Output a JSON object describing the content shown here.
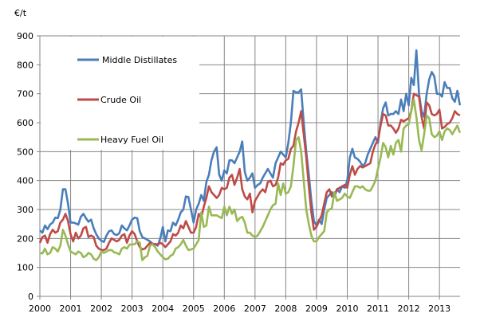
{
  "chart_data": {
    "type": "line",
    "title": "",
    "xlabel": "",
    "ylabel": "€/t",
    "ylim": [
      0,
      900
    ],
    "yticks": [
      0,
      100,
      200,
      300,
      400,
      500,
      600,
      700,
      800,
      900
    ],
    "xticks": [
      "2000",
      "2001",
      "2002",
      "2003",
      "2004",
      "2005",
      "2006",
      "2007",
      "2008",
      "2009",
      "2010",
      "2011",
      "2012",
      "2013"
    ],
    "x_start": "2000-01",
    "x_frequency": "monthly",
    "grid": true,
    "legend_position": "top-left",
    "series": [
      {
        "name": "Middle Distillates",
        "color": "#4a7ebb",
        "values": [
          228,
          220,
          245,
          232,
          248,
          255,
          272,
          270,
          300,
          370,
          370,
          320,
          255,
          255,
          252,
          248,
          275,
          285,
          270,
          258,
          265,
          235,
          215,
          200,
          192,
          188,
          210,
          225,
          228,
          215,
          212,
          218,
          245,
          235,
          228,
          245,
          265,
          272,
          270,
          225,
          205,
          200,
          195,
          190,
          182,
          180,
          175,
          200,
          240,
          190,
          228,
          225,
          255,
          245,
          265,
          290,
          300,
          345,
          343,
          300,
          255,
          300,
          320,
          350,
          330,
          395,
          420,
          470,
          500,
          515,
          420,
          400,
          435,
          425,
          470,
          470,
          460,
          480,
          500,
          535,
          430,
          400,
          410,
          425,
          375,
          385,
          390,
          410,
          425,
          440,
          425,
          410,
          460,
          480,
          500,
          490,
          480,
          530,
          600,
          710,
          705,
          705,
          715,
          600,
          500,
          420,
          330,
          260,
          245,
          265,
          250,
          300,
          340,
          350,
          360,
          345,
          370,
          360,
          380,
          375,
          400,
          480,
          510,
          480,
          475,
          465,
          450,
          460,
          490,
          510,
          530,
          550,
          530,
          600,
          650,
          670,
          625,
          630,
          630,
          640,
          630,
          680,
          640,
          700,
          660,
          755,
          730,
          850,
          700,
          640,
          620,
          700,
          750,
          775,
          760,
          700,
          700,
          690,
          740,
          720,
          720,
          685,
          672,
          710,
          660
        ]
      },
      {
        "name": "Crude Oil",
        "color": "#be4b48",
        "values": [
          185,
          205,
          210,
          185,
          215,
          230,
          220,
          225,
          255,
          265,
          285,
          260,
          215,
          190,
          220,
          200,
          210,
          235,
          240,
          205,
          210,
          205,
          175,
          165,
          160,
          160,
          165,
          185,
          200,
          195,
          190,
          195,
          210,
          215,
          185,
          210,
          225,
          215,
          190,
          170,
          162,
          165,
          175,
          185,
          180,
          180,
          180,
          185,
          180,
          170,
          180,
          190,
          215,
          210,
          220,
          245,
          235,
          260,
          240,
          220,
          220,
          240,
          285,
          270,
          310,
          340,
          380,
          360,
          350,
          340,
          350,
          375,
          370,
          375,
          410,
          420,
          385,
          410,
          440,
          370,
          345,
          335,
          355,
          290,
          330,
          345,
          360,
          370,
          360,
          395,
          400,
          380,
          385,
          410,
          460,
          455,
          470,
          475,
          510,
          520,
          570,
          600,
          640,
          560,
          480,
          380,
          290,
          230,
          240,
          260,
          280,
          320,
          360,
          370,
          345,
          350,
          370,
          375,
          380,
          385,
          375,
          420,
          450,
          420,
          440,
          450,
          445,
          450,
          455,
          460,
          500,
          525,
          540,
          590,
          630,
          625,
          590,
          590,
          580,
          565,
          580,
          610,
          605,
          610,
          615,
          640,
          700,
          695,
          690,
          620,
          580,
          670,
          660,
          630,
          625,
          630,
          645,
          580,
          585,
          595,
          600,
          615,
          640,
          630,
          625
        ]
      },
      {
        "name": "Heavy Fuel Oil",
        "color": "#98b954",
        "values": [
          150,
          148,
          165,
          145,
          150,
          170,
          165,
          155,
          175,
          230,
          210,
          180,
          155,
          150,
          145,
          155,
          150,
          135,
          140,
          150,
          145,
          130,
          125,
          135,
          155,
          150,
          155,
          160,
          160,
          152,
          150,
          145,
          165,
          170,
          165,
          178,
          180,
          180,
          190,
          185,
          125,
          135,
          140,
          175,
          180,
          170,
          155,
          145,
          135,
          128,
          130,
          140,
          145,
          165,
          170,
          180,
          195,
          175,
          160,
          162,
          165,
          180,
          195,
          290,
          240,
          245,
          310,
          280,
          280,
          280,
          275,
          270,
          310,
          280,
          310,
          285,
          300,
          260,
          270,
          275,
          255,
          220,
          220,
          210,
          205,
          210,
          225,
          240,
          260,
          280,
          300,
          315,
          320,
          390,
          350,
          390,
          355,
          360,
          380,
          450,
          540,
          550,
          500,
          400,
          300,
          250,
          210,
          190,
          190,
          205,
          215,
          225,
          290,
          300,
          305,
          360,
          330,
          335,
          340,
          355,
          345,
          340,
          360,
          380,
          380,
          375,
          380,
          370,
          365,
          365,
          380,
          400,
          440,
          480,
          530,
          515,
          480,
          520,
          490,
          530,
          540,
          500,
          580,
          590,
          595,
          640,
          680,
          620,
          540,
          505,
          560,
          625,
          615,
          560,
          550,
          555,
          570,
          540,
          570,
          580,
          575,
          560,
          575,
          590,
          565
        ]
      }
    ]
  }
}
